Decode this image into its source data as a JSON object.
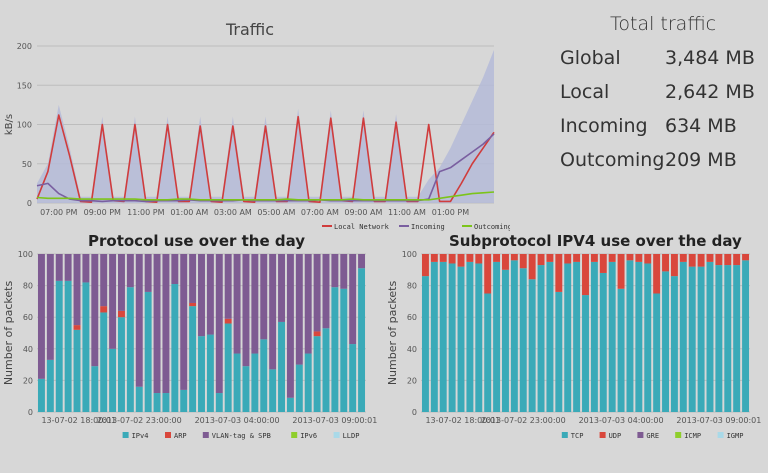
{
  "totals": {
    "title": "Total traffic",
    "rows": [
      {
        "label": "Global",
        "value": "3,484 MB"
      },
      {
        "label": "Local",
        "value": "2,642 MB"
      },
      {
        "label": "Incoming",
        "value": "634 MB"
      },
      {
        "label": "Outcoming",
        "value": "209 MB"
      }
    ]
  },
  "colors": {
    "local": "#d03c3c",
    "incoming": "#7a5fa0",
    "outcoming": "#7cc41a",
    "area": "#b5bbd8",
    "ipv4": "#3aaab8",
    "arp": "#d9473c",
    "vlan": "#7e5b92",
    "ipv6": "#8fce2c",
    "lldp": "#a9d9e8",
    "tcp": "#3aaab8",
    "udp": "#d9473c",
    "gre": "#7e5b92",
    "icmp": "#8fce2c",
    "igmp": "#a9d9e8"
  },
  "chart_data": [
    {
      "type": "line",
      "title": "Traffic",
      "ylabel": "kB/s",
      "ylim": [
        0,
        200
      ],
      "yticks": [
        "0",
        "50",
        "100",
        "150",
        "200"
      ],
      "xticks": [
        "07:00 PM",
        "09:00 PM",
        "11:00 PM",
        "01:00 AM",
        "03:00 AM",
        "05:00 AM",
        "07:00 AM",
        "09:00 AM",
        "11:00 AM",
        "01:00 PM"
      ],
      "x": [
        18,
        18.5,
        19,
        19.5,
        20,
        20.5,
        21,
        21.5,
        22,
        22.5,
        23,
        23.5,
        24,
        24.5,
        25,
        25.5,
        26,
        26.5,
        27,
        27.5,
        28,
        28.5,
        29,
        29.5,
        30,
        30.5,
        31,
        31.5,
        32,
        32.5,
        33,
        33.5,
        34,
        34.5,
        35,
        35.5,
        36,
        36.5,
        37,
        37.5,
        38,
        38.5,
        39
      ],
      "series": [
        {
          "name": "Local Network",
          "color_key": "local",
          "values": [
            5,
            40,
            112,
            60,
            2,
            1,
            100,
            3,
            2,
            100,
            2,
            1,
            100,
            2,
            2,
            98,
            2,
            1,
            98,
            2,
            1,
            98,
            2,
            2,
            110,
            2,
            1,
            108,
            3,
            2,
            108,
            2,
            2,
            103,
            2,
            2,
            100,
            2,
            2,
            25,
            50,
            70,
            90
          ]
        },
        {
          "name": "Incoming",
          "color_key": "incoming",
          "values": [
            22,
            25,
            12,
            5,
            3,
            3,
            2,
            3,
            3,
            3,
            2,
            3,
            3,
            3,
            4,
            3,
            3,
            3,
            3,
            4,
            3,
            3,
            3,
            3,
            3,
            3,
            4,
            3,
            3,
            3,
            3,
            3,
            3,
            3,
            3,
            3,
            5,
            40,
            45,
            55,
            65,
            75,
            88
          ]
        },
        {
          "name": "Outcoming",
          "color_key": "outcoming",
          "values": [
            7,
            6,
            6,
            6,
            5,
            5,
            5,
            5,
            5,
            5,
            4,
            4,
            4,
            5,
            5,
            4,
            4,
            4,
            4,
            4,
            4,
            4,
            4,
            5,
            4,
            4,
            4,
            4,
            4,
            5,
            4,
            4,
            4,
            4,
            4,
            4,
            4,
            6,
            8,
            10,
            12,
            13,
            14
          ]
        }
      ],
      "area_upper": [
        25,
        50,
        125,
        70,
        8,
        8,
        110,
        8,
        8,
        110,
        8,
        8,
        110,
        8,
        8,
        110,
        8,
        8,
        110,
        8,
        8,
        110,
        8,
        8,
        120,
        8,
        8,
        118,
        8,
        8,
        118,
        8,
        8,
        113,
        8,
        8,
        30,
        45,
        70,
        100,
        130,
        160,
        195
      ]
    },
    {
      "type": "bar",
      "title": "Protocol use over the day",
      "ylabel": "Number of packets",
      "ylim": [
        0,
        100
      ],
      "yticks": [
        "0",
        "20",
        "40",
        "60",
        "80",
        "100"
      ],
      "xtick_labels": [
        "13-07-02 18:00:01",
        "2013-07-02 23:00:00",
        "2013-07-03 04:00:00",
        "2013-07-03 09:00:01"
      ],
      "xtick_index": [
        0,
        11,
        22,
        33
      ],
      "legend": [
        "IPv4",
        "ARP",
        "VLAN-tag & SPB",
        "IPv6",
        "LLDP"
      ],
      "legend_keys": [
        "ipv4",
        "arp",
        "vlan",
        "ipv6",
        "lldp"
      ],
      "stack_keys": [
        "ipv4",
        "arp",
        "vlan"
      ],
      "values": [
        [
          21,
          0,
          79
        ],
        [
          33,
          0,
          67
        ],
        [
          83,
          0,
          17
        ],
        [
          83,
          0,
          17
        ],
        [
          52,
          3,
          45
        ],
        [
          82,
          0,
          18
        ],
        [
          29,
          0,
          71
        ],
        [
          63,
          4,
          33
        ],
        [
          40,
          0,
          60
        ],
        [
          60,
          4,
          36
        ],
        [
          79,
          0,
          21
        ],
        [
          16,
          0,
          84
        ],
        [
          76,
          0,
          24
        ],
        [
          12,
          0,
          88
        ],
        [
          12,
          0,
          88
        ],
        [
          81,
          0,
          19
        ],
        [
          14,
          0,
          86
        ],
        [
          67,
          2,
          31
        ],
        [
          48,
          0,
          52
        ],
        [
          49,
          0,
          51
        ],
        [
          12,
          0,
          88
        ],
        [
          56,
          3,
          41
        ],
        [
          37,
          0,
          63
        ],
        [
          29,
          0,
          71
        ],
        [
          37,
          0,
          63
        ],
        [
          46,
          0,
          54
        ],
        [
          27,
          0,
          73
        ],
        [
          57,
          0,
          43
        ],
        [
          9,
          0,
          91
        ],
        [
          30,
          0,
          70
        ],
        [
          37,
          0,
          63
        ],
        [
          48,
          3,
          49
        ],
        [
          53,
          0,
          47
        ],
        [
          79,
          0,
          21
        ],
        [
          78,
          0,
          22
        ],
        [
          43,
          0,
          57
        ],
        [
          91,
          0,
          9
        ]
      ]
    },
    {
      "type": "bar",
      "title": "Subprotocol IPV4 use over the day",
      "ylabel": "Number of packets",
      "ylim": [
        0,
        100
      ],
      "yticks": [
        "0",
        "20",
        "40",
        "60",
        "80",
        "100"
      ],
      "xtick_labels": [
        "13-07-02 18:00:01",
        "2013-07-02 23:00:00",
        "2013-07-03 04:00:00",
        "2013-07-03 09:00:01"
      ],
      "xtick_index": [
        0,
        11,
        22,
        33
      ],
      "legend": [
        "TCP",
        "UDP",
        "GRE",
        "ICMP",
        "IGMP"
      ],
      "legend_keys": [
        "tcp",
        "udp",
        "gre",
        "icmp",
        "igmp"
      ],
      "stack_keys": [
        "tcp",
        "udp"
      ],
      "values": [
        [
          86,
          14
        ],
        [
          95,
          5
        ],
        [
          95,
          5
        ],
        [
          94,
          6
        ],
        [
          92,
          8
        ],
        [
          95,
          5
        ],
        [
          94,
          6
        ],
        [
          75,
          25
        ],
        [
          95,
          5
        ],
        [
          90,
          10
        ],
        [
          96,
          4
        ],
        [
          91,
          9
        ],
        [
          84,
          16
        ],
        [
          93,
          7
        ],
        [
          95,
          5
        ],
        [
          76,
          24
        ],
        [
          94,
          6
        ],
        [
          95,
          5
        ],
        [
          74,
          26
        ],
        [
          95,
          5
        ],
        [
          88,
          12
        ],
        [
          95,
          5
        ],
        [
          78,
          22
        ],
        [
          96,
          4
        ],
        [
          95,
          5
        ],
        [
          94,
          6
        ],
        [
          75,
          25
        ],
        [
          89,
          11
        ],
        [
          86,
          14
        ],
        [
          95,
          5
        ],
        [
          92,
          8
        ],
        [
          92,
          8
        ],
        [
          95,
          5
        ],
        [
          93,
          7
        ],
        [
          93,
          7
        ],
        [
          93,
          7
        ],
        [
          96,
          4
        ]
      ]
    }
  ]
}
